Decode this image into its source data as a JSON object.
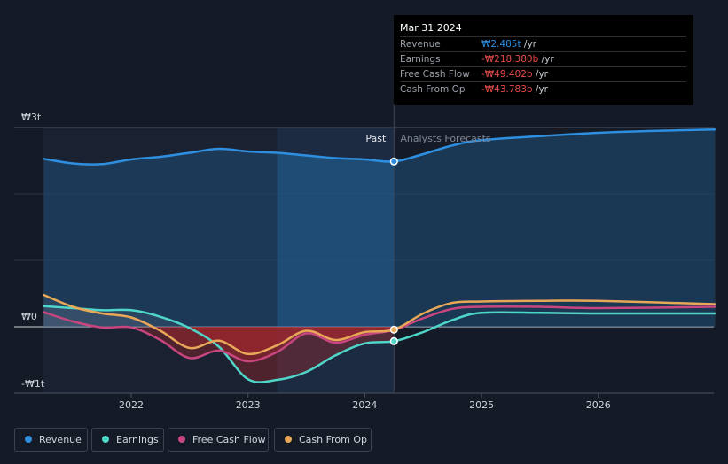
{
  "chart_data": {
    "type": "line",
    "ylabels": [
      "₩3t",
      "₩0",
      "-₩1t"
    ],
    "xticks": [
      {
        "x": 2022,
        "label": "2022"
      },
      {
        "x": 2023,
        "label": "2023"
      },
      {
        "x": 2024,
        "label": "2024"
      },
      {
        "x": 2025,
        "label": "2025"
      },
      {
        "x": 2026,
        "label": "2026"
      }
    ],
    "xlim": [
      2021.0,
      2027.0
    ],
    "ylim": [
      -1.0,
      3.0
    ],
    "divider_x": 2024.25,
    "past_label": "Past",
    "forecast_label": "Analysts Forecasts",
    "series": [
      {
        "name": "Revenue",
        "color": "#2e8fe0",
        "points": [
          [
            2021.25,
            2.53
          ],
          [
            2021.5,
            2.46
          ],
          [
            2021.75,
            2.45
          ],
          [
            2022.0,
            2.52
          ],
          [
            2022.25,
            2.56
          ],
          [
            2022.5,
            2.62
          ],
          [
            2022.75,
            2.68
          ],
          [
            2023.0,
            2.64
          ],
          [
            2023.25,
            2.62
          ],
          [
            2023.5,
            2.58
          ],
          [
            2023.75,
            2.54
          ],
          [
            2024.0,
            2.52
          ],
          [
            2024.25,
            2.49
          ],
          [
            2024.5,
            2.6
          ],
          [
            2024.75,
            2.73
          ],
          [
            2025.0,
            2.81
          ],
          [
            2025.5,
            2.87
          ],
          [
            2026.0,
            2.92
          ],
          [
            2026.5,
            2.95
          ],
          [
            2027.0,
            2.97
          ]
        ]
      },
      {
        "name": "Earnings",
        "color": "#4fd6c8",
        "points": [
          [
            2021.25,
            0.31
          ],
          [
            2021.5,
            0.28
          ],
          [
            2021.75,
            0.25
          ],
          [
            2022.0,
            0.25
          ],
          [
            2022.25,
            0.15
          ],
          [
            2022.5,
            -0.02
          ],
          [
            2022.75,
            -0.3
          ],
          [
            2023.0,
            -0.79
          ],
          [
            2023.25,
            -0.8
          ],
          [
            2023.5,
            -0.68
          ],
          [
            2023.75,
            -0.43
          ],
          [
            2024.0,
            -0.25
          ],
          [
            2024.25,
            -0.218
          ],
          [
            2024.5,
            -0.08
          ],
          [
            2024.75,
            0.1
          ],
          [
            2025.0,
            0.21
          ],
          [
            2025.5,
            0.21
          ],
          [
            2026.0,
            0.2
          ],
          [
            2027.0,
            0.2
          ]
        ]
      },
      {
        "name": "Free Cash Flow",
        "color": "#c8467f",
        "points": [
          [
            2021.25,
            0.22
          ],
          [
            2021.5,
            0.08
          ],
          [
            2021.75,
            -0.01
          ],
          [
            2022.0,
            -0.01
          ],
          [
            2022.25,
            -0.2
          ],
          [
            2022.5,
            -0.47
          ],
          [
            2022.75,
            -0.36
          ],
          [
            2023.0,
            -0.52
          ],
          [
            2023.25,
            -0.38
          ],
          [
            2023.5,
            -0.1
          ],
          [
            2023.75,
            -0.24
          ],
          [
            2024.0,
            -0.12
          ],
          [
            2024.25,
            -0.049
          ],
          [
            2024.5,
            0.13
          ],
          [
            2024.75,
            0.27
          ],
          [
            2025.0,
            0.3
          ],
          [
            2025.5,
            0.3
          ],
          [
            2026.0,
            0.28
          ],
          [
            2027.0,
            0.3
          ]
        ]
      },
      {
        "name": "Cash From Op",
        "color": "#e9a858",
        "points": [
          [
            2021.25,
            0.48
          ],
          [
            2021.5,
            0.3
          ],
          [
            2021.75,
            0.2
          ],
          [
            2022.0,
            0.14
          ],
          [
            2022.25,
            -0.06
          ],
          [
            2022.5,
            -0.32
          ],
          [
            2022.75,
            -0.21
          ],
          [
            2023.0,
            -0.41
          ],
          [
            2023.25,
            -0.28
          ],
          [
            2023.5,
            -0.06
          ],
          [
            2023.75,
            -0.2
          ],
          [
            2024.0,
            -0.08
          ],
          [
            2024.25,
            -0.044
          ],
          [
            2024.5,
            0.2
          ],
          [
            2024.75,
            0.36
          ],
          [
            2025.0,
            0.38
          ],
          [
            2025.5,
            0.39
          ],
          [
            2026.0,
            0.39
          ],
          [
            2027.0,
            0.34
          ]
        ]
      }
    ]
  },
  "tooltip": {
    "date": "Mar 31 2024",
    "rows": [
      {
        "label": "Revenue",
        "value": "₩2.485t",
        "unit": " /yr",
        "color": "#2e8fe0"
      },
      {
        "label": "Earnings",
        "value": "-₩218.380b",
        "unit": " /yr",
        "color": "#e64a4a"
      },
      {
        "label": "Free Cash Flow",
        "value": "-₩49.402b",
        "unit": " /yr",
        "color": "#e64a4a"
      },
      {
        "label": "Cash From Op",
        "value": "-₩43.783b",
        "unit": " /yr",
        "color": "#e64a4a"
      }
    ]
  },
  "legend": [
    {
      "label": "Revenue",
      "color": "#2e8fe0"
    },
    {
      "label": "Earnings",
      "color": "#4fd6c8"
    },
    {
      "label": "Free Cash Flow",
      "color": "#c8467f"
    },
    {
      "label": "Cash From Op",
      "color": "#e9a858"
    }
  ]
}
